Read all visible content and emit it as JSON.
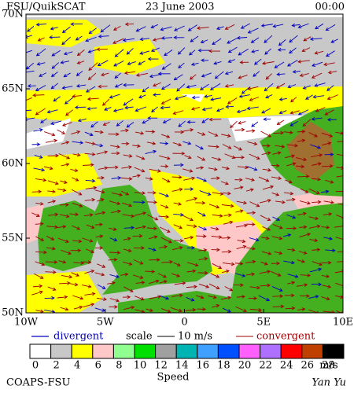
{
  "header": {
    "title": "FSU/QuikSCAT",
    "date": "23 June 2003",
    "time": "00:00"
  },
  "axes": {
    "lat_labels": [
      "70N",
      "65N",
      "60N",
      "55N",
      "50N"
    ],
    "lon_labels": [
      "10W",
      "5W",
      "0",
      "5E",
      "10E"
    ]
  },
  "legend": {
    "divergent": "divergent",
    "scale": "scale",
    "scale_value": "10 m/s",
    "convergent": "convergent"
  },
  "colorbar": {
    "labels": [
      "0",
      "2",
      "4",
      "6",
      "8",
      "10",
      "12",
      "14",
      "16",
      "18",
      "20",
      "22",
      "24",
      "26",
      "28"
    ],
    "unit": "m/s",
    "title": "Speed",
    "colors": [
      "#ffffff",
      "#c8c8c8",
      "#ffff00",
      "#ffc8c8",
      "#90ff90",
      "#00e000",
      "#a0a0a0",
      "#00b4b4",
      "#40a0ff",
      "#0050ff",
      "#ff60ff",
      "#b070ff",
      "#ff0000",
      "#c04000",
      "#000000"
    ]
  },
  "footer": {
    "org": "COAPS-FSU",
    "author": "Yan Yu"
  }
}
